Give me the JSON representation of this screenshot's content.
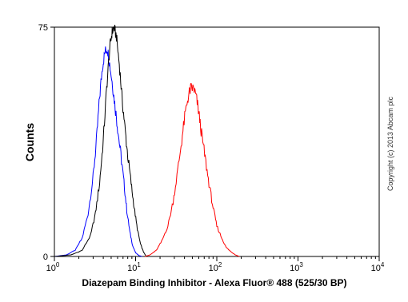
{
  "chart_data": {
    "type": "line",
    "xlabel": "Diazepam Binding Inhibitor - Alexa Fluor® 488 (525/30 BP)",
    "ylabel": "Counts",
    "x_scale": "log",
    "xlim": [
      1,
      10000
    ],
    "ylim": [
      0,
      75
    ],
    "y_ticks": [
      "0",
      "75"
    ],
    "x_ticks": [
      {
        "base": "10",
        "exp": "0"
      },
      {
        "base": "10",
        "exp": "1"
      },
      {
        "base": "10",
        "exp": "2"
      },
      {
        "base": "10",
        "exp": "3"
      },
      {
        "base": "10",
        "exp": "4"
      }
    ],
    "grid": false,
    "series": [
      {
        "color": "#0000ff",
        "x": [
          1.0,
          1.4,
          1.8,
          2.2,
          2.6,
          3.0,
          3.3,
          3.6,
          3.9,
          4.2,
          4.5,
          4.8,
          5.2,
          5.6,
          6.0,
          6.6,
          7.2,
          7.8,
          8.5,
          9.2,
          10.0,
          11.0,
          12.0
        ],
        "y": [
          0,
          0.5,
          2,
          6,
          14,
          26,
          38,
          52,
          62,
          67,
          68,
          63,
          56,
          49,
          42,
          33,
          24,
          15,
          8,
          3.5,
          1.2,
          0.3,
          0
        ]
      },
      {
        "color": "#000000",
        "x": [
          1.0,
          1.6,
          2.2,
          2.8,
          3.2,
          3.6,
          4.0,
          4.4,
          4.8,
          5.1,
          5.4,
          5.8,
          6.3,
          6.8,
          7.4,
          8.0,
          8.8,
          9.6,
          10.5,
          11.5,
          12.5,
          13.5
        ],
        "y": [
          0,
          0.5,
          2,
          7,
          14,
          24,
          38,
          55,
          68,
          73,
          75,
          72,
          63,
          52,
          42,
          33,
          24,
          16,
          9,
          4,
          1.5,
          0
        ]
      },
      {
        "color": "#ff0000",
        "x": [
          13,
          15,
          18,
          21,
          25,
          29,
          33,
          37,
          41,
          45,
          48,
          52,
          56,
          60,
          65,
          72,
          80,
          90,
          100,
          115,
          130,
          150,
          170,
          190
        ],
        "y": [
          0,
          0.5,
          2,
          5,
          10,
          18,
          28,
          38,
          47,
          53,
          55,
          55,
          52,
          47,
          40,
          32,
          24,
          16,
          10,
          6,
          3,
          1.5,
          0.5,
          0
        ]
      }
    ]
  },
  "watermark": "Copyright (c) 2013 Abcam plc"
}
